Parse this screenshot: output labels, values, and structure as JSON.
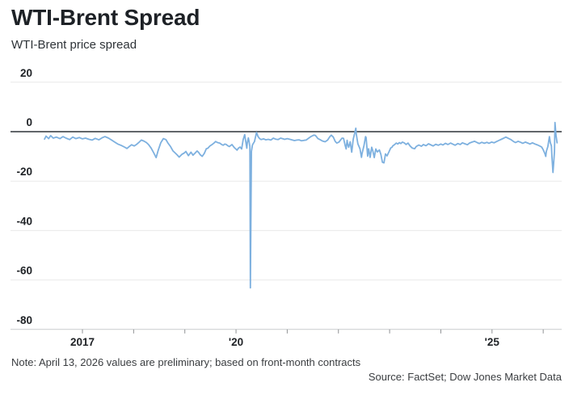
{
  "header": {
    "title": "WTI-Brent Spread",
    "subtitle": "WTI-Brent price spread"
  },
  "footer": {
    "note": "Note: April 13, 2026 values are preliminary; based on front-month contracts",
    "source": "Source: FactSet; Dow Jones Market Data"
  },
  "colors": {
    "line": "#7DB0DF",
    "zero_line": "#2e3338",
    "gridline": "#e9e9e9",
    "axis_line": "#c9cbcd",
    "text": "#202327"
  },
  "chart_data": {
    "type": "line",
    "title": "WTI-Brent Spread",
    "subtitle": "WTI-Brent price spread",
    "xlabel": "",
    "ylabel": "",
    "ylim": [
      -80,
      20
    ],
    "yticks": [
      20,
      0,
      -20,
      -40,
      -60,
      -80
    ],
    "xlim": [
      2016.05,
      2026.37
    ],
    "xticks": [
      2017,
      2018,
      2019,
      2020,
      2021,
      2022,
      2023,
      2024,
      2025,
      2026
    ],
    "xtick_labels": {
      "2017": "2017",
      "2020": "'20",
      "2025": "'25"
    },
    "grid": "horizontal",
    "legend": "none",
    "line_color": "#7DB0DF",
    "series": [
      {
        "name": "WTI-Brent price spread",
        "points": [
          [
            2016.26,
            -3.0
          ],
          [
            2016.29,
            -1.8
          ],
          [
            2016.34,
            -2.8
          ],
          [
            2016.38,
            -1.6
          ],
          [
            2016.43,
            -2.6
          ],
          [
            2016.49,
            -2.2
          ],
          [
            2016.56,
            -2.8
          ],
          [
            2016.62,
            -2.0
          ],
          [
            2016.68,
            -2.6
          ],
          [
            2016.75,
            -3.2
          ],
          [
            2016.81,
            -2.2
          ],
          [
            2016.87,
            -2.8
          ],
          [
            2016.94,
            -2.4
          ],
          [
            2017.0,
            -2.9
          ],
          [
            2017.06,
            -2.6
          ],
          [
            2017.13,
            -3.1
          ],
          [
            2017.19,
            -3.4
          ],
          [
            2017.25,
            -2.7
          ],
          [
            2017.32,
            -3.3
          ],
          [
            2017.38,
            -2.5
          ],
          [
            2017.44,
            -2.0
          ],
          [
            2017.51,
            -2.6
          ],
          [
            2017.57,
            -3.4
          ],
          [
            2017.63,
            -4.2
          ],
          [
            2017.69,
            -5.0
          ],
          [
            2017.76,
            -5.6
          ],
          [
            2017.82,
            -6.2
          ],
          [
            2017.87,
            -6.8
          ],
          [
            2017.92,
            -5.9
          ],
          [
            2017.96,
            -5.3
          ],
          [
            2018.01,
            -5.8
          ],
          [
            2018.06,
            -5.1
          ],
          [
            2018.11,
            -4.2
          ],
          [
            2018.15,
            -3.4
          ],
          [
            2018.2,
            -3.8
          ],
          [
            2018.25,
            -4.4
          ],
          [
            2018.29,
            -5.2
          ],
          [
            2018.34,
            -6.6
          ],
          [
            2018.39,
            -8.5
          ],
          [
            2018.44,
            -10.5
          ],
          [
            2018.48,
            -7.5
          ],
          [
            2018.53,
            -4.5
          ],
          [
            2018.58,
            -2.8
          ],
          [
            2018.63,
            -3.2
          ],
          [
            2018.67,
            -4.6
          ],
          [
            2018.72,
            -6.0
          ],
          [
            2018.77,
            -7.8
          ],
          [
            2018.82,
            -8.8
          ],
          [
            2018.86,
            -9.6
          ],
          [
            2018.89,
            -10.3
          ],
          [
            2018.94,
            -9.2
          ],
          [
            2018.99,
            -8.6
          ],
          [
            2019.02,
            -8.0
          ],
          [
            2019.07,
            -9.7
          ],
          [
            2019.12,
            -8.3
          ],
          [
            2019.16,
            -9.5
          ],
          [
            2019.19,
            -8.9
          ],
          [
            2019.24,
            -7.8
          ],
          [
            2019.27,
            -8.4
          ],
          [
            2019.3,
            -9.3
          ],
          [
            2019.34,
            -10.0
          ],
          [
            2019.38,
            -8.8
          ],
          [
            2019.42,
            -6.9
          ],
          [
            2019.45,
            -6.7
          ],
          [
            2019.49,
            -5.8
          ],
          [
            2019.54,
            -5.1
          ],
          [
            2019.57,
            -4.6
          ],
          [
            2019.6,
            -4.0
          ],
          [
            2019.64,
            -4.4
          ],
          [
            2019.68,
            -4.6
          ],
          [
            2019.72,
            -5.2
          ],
          [
            2019.75,
            -5.5
          ],
          [
            2019.78,
            -5.0
          ],
          [
            2019.81,
            -5.2
          ],
          [
            2019.84,
            -5.7
          ],
          [
            2019.87,
            -6.0
          ],
          [
            2019.92,
            -5.2
          ],
          [
            2019.97,
            -6.5
          ],
          [
            2020.02,
            -7.5
          ],
          [
            2020.05,
            -6.6
          ],
          [
            2020.08,
            -6.2
          ],
          [
            2020.11,
            -7.0
          ],
          [
            2020.14,
            -3.2
          ],
          [
            2020.17,
            -1.2
          ],
          [
            2020.19,
            -4.0
          ],
          [
            2020.21,
            -6.7
          ],
          [
            2020.22,
            -4.5
          ],
          [
            2020.24,
            -2.5
          ],
          [
            2020.25,
            -3.5
          ],
          [
            2020.27,
            -6.0
          ],
          [
            2020.28,
            -63.2
          ],
          [
            2020.3,
            -8.0
          ],
          [
            2020.32,
            -5.5
          ],
          [
            2020.33,
            -5.0
          ],
          [
            2020.36,
            -4.0
          ],
          [
            2020.4,
            -0.3
          ],
          [
            2020.43,
            -2.0
          ],
          [
            2020.46,
            -2.8
          ],
          [
            2020.49,
            -3.2
          ],
          [
            2020.54,
            -2.9
          ],
          [
            2020.58,
            -3.3
          ],
          [
            2020.63,
            -3.1
          ],
          [
            2020.68,
            -3.4
          ],
          [
            2020.73,
            -2.6
          ],
          [
            2020.77,
            -3.0
          ],
          [
            2020.82,
            -3.2
          ],
          [
            2020.87,
            -2.6
          ],
          [
            2020.92,
            -2.9
          ],
          [
            2020.95,
            -3.1
          ],
          [
            2021.0,
            -2.8
          ],
          [
            2021.04,
            -3.0
          ],
          [
            2021.09,
            -3.3
          ],
          [
            2021.14,
            -3.6
          ],
          [
            2021.19,
            -3.4
          ],
          [
            2021.23,
            -3.3
          ],
          [
            2021.28,
            -3.7
          ],
          [
            2021.33,
            -3.5
          ],
          [
            2021.37,
            -3.4
          ],
          [
            2021.42,
            -2.6
          ],
          [
            2021.47,
            -1.9
          ],
          [
            2021.52,
            -1.4
          ],
          [
            2021.55,
            -1.5
          ],
          [
            2021.6,
            -2.8
          ],
          [
            2021.64,
            -3.2
          ],
          [
            2021.69,
            -3.8
          ],
          [
            2021.74,
            -4.1
          ],
          [
            2021.79,
            -3.4
          ],
          [
            2021.83,
            -2.1
          ],
          [
            2021.86,
            -1.4
          ],
          [
            2021.9,
            -2.2
          ],
          [
            2021.94,
            -4.0
          ],
          [
            2021.97,
            -4.6
          ],
          [
            2022.01,
            -4.2
          ],
          [
            2022.04,
            -3.4
          ],
          [
            2022.07,
            -2.6
          ],
          [
            2022.1,
            -2.7
          ],
          [
            2022.13,
            -5.5
          ],
          [
            2022.15,
            -7.0
          ],
          [
            2022.17,
            -3.5
          ],
          [
            2022.18,
            -5.0
          ],
          [
            2022.2,
            -6.3
          ],
          [
            2022.23,
            -4.1
          ],
          [
            2022.26,
            -8.3
          ],
          [
            2022.29,
            -3.0
          ],
          [
            2022.32,
            -0.5
          ],
          [
            2022.34,
            1.4
          ],
          [
            2022.35,
            -1.0
          ],
          [
            2022.38,
            -4.9
          ],
          [
            2022.42,
            -6.9
          ],
          [
            2022.45,
            -10.4
          ],
          [
            2022.46,
            -9.0
          ],
          [
            2022.5,
            -5.6
          ],
          [
            2022.53,
            -2.0
          ],
          [
            2022.54,
            -2.4
          ],
          [
            2022.57,
            -9.9
          ],
          [
            2022.59,
            -6.9
          ],
          [
            2022.62,
            -10.4
          ],
          [
            2022.65,
            -6.3
          ],
          [
            2022.67,
            -7.6
          ],
          [
            2022.7,
            -10.5
          ],
          [
            2022.73,
            -7.0
          ],
          [
            2022.76,
            -8.2
          ],
          [
            2022.8,
            -7.4
          ],
          [
            2022.83,
            -9.2
          ],
          [
            2022.86,
            -12.4
          ],
          [
            2022.89,
            -12.6
          ],
          [
            2022.92,
            -9.0
          ],
          [
            2022.95,
            -9.8
          ],
          [
            2022.99,
            -8.0
          ],
          [
            2023.02,
            -6.6
          ],
          [
            2023.05,
            -6.2
          ],
          [
            2023.06,
            -5.8
          ],
          [
            2023.1,
            -5.2
          ],
          [
            2023.13,
            -4.6
          ],
          [
            2023.16,
            -5.0
          ],
          [
            2023.19,
            -4.4
          ],
          [
            2023.22,
            -4.8
          ],
          [
            2023.25,
            -4.2
          ],
          [
            2023.29,
            -4.6
          ],
          [
            2023.32,
            -5.2
          ],
          [
            2023.36,
            -4.6
          ],
          [
            2023.4,
            -5.8
          ],
          [
            2023.44,
            -6.6
          ],
          [
            2023.49,
            -6.9
          ],
          [
            2023.52,
            -6.0
          ],
          [
            2023.57,
            -5.4
          ],
          [
            2023.62,
            -5.9
          ],
          [
            2023.66,
            -5.2
          ],
          [
            2023.71,
            -5.7
          ],
          [
            2023.76,
            -4.9
          ],
          [
            2023.81,
            -5.4
          ],
          [
            2023.85,
            -5.8
          ],
          [
            2023.9,
            -5.1
          ],
          [
            2023.95,
            -5.5
          ],
          [
            2024.0,
            -5.0
          ],
          [
            2024.04,
            -5.4
          ],
          [
            2024.09,
            -4.7
          ],
          [
            2024.14,
            -5.2
          ],
          [
            2024.19,
            -4.6
          ],
          [
            2024.23,
            -5.0
          ],
          [
            2024.28,
            -5.5
          ],
          [
            2024.33,
            -4.8
          ],
          [
            2024.38,
            -5.2
          ],
          [
            2024.42,
            -4.5
          ],
          [
            2024.47,
            -4.9
          ],
          [
            2024.52,
            -5.3
          ],
          [
            2024.56,
            -4.6
          ],
          [
            2024.61,
            -4.2
          ],
          [
            2024.66,
            -3.9
          ],
          [
            2024.71,
            -4.4
          ],
          [
            2024.75,
            -4.8
          ],
          [
            2024.8,
            -4.3
          ],
          [
            2024.85,
            -4.7
          ],
          [
            2024.9,
            -4.3
          ],
          [
            2024.94,
            -4.7
          ],
          [
            2024.99,
            -4.2
          ],
          [
            2025.04,
            -4.5
          ],
          [
            2025.09,
            -4.0
          ],
          [
            2025.13,
            -3.6
          ],
          [
            2025.18,
            -3.1
          ],
          [
            2025.23,
            -2.6
          ],
          [
            2025.27,
            -2.2
          ],
          [
            2025.32,
            -2.7
          ],
          [
            2025.37,
            -3.2
          ],
          [
            2025.42,
            -4.0
          ],
          [
            2025.46,
            -4.4
          ],
          [
            2025.51,
            -3.9
          ],
          [
            2025.56,
            -4.3
          ],
          [
            2025.6,
            -4.7
          ],
          [
            2025.65,
            -4.2
          ],
          [
            2025.7,
            -4.6
          ],
          [
            2025.74,
            -5.0
          ],
          [
            2025.79,
            -4.5
          ],
          [
            2025.84,
            -5.0
          ],
          [
            2025.89,
            -5.4
          ],
          [
            2025.93,
            -5.8
          ],
          [
            2025.97,
            -6.2
          ],
          [
            2026.0,
            -7.3
          ],
          [
            2026.03,
            -8.8
          ],
          [
            2026.05,
            -10.0
          ],
          [
            2026.06,
            -8.0
          ],
          [
            2026.09,
            -6.0
          ],
          [
            2026.12,
            -2.0
          ],
          [
            2026.14,
            -4.5
          ],
          [
            2026.16,
            -5.8
          ],
          [
            2026.17,
            -10.0
          ],
          [
            2026.19,
            -16.5
          ],
          [
            2026.2,
            -14.0
          ],
          [
            2026.22,
            -8.0
          ],
          [
            2026.23,
            3.7
          ],
          [
            2026.25,
            -1.5
          ],
          [
            2026.27,
            -4.5
          ]
        ]
      }
    ]
  }
}
